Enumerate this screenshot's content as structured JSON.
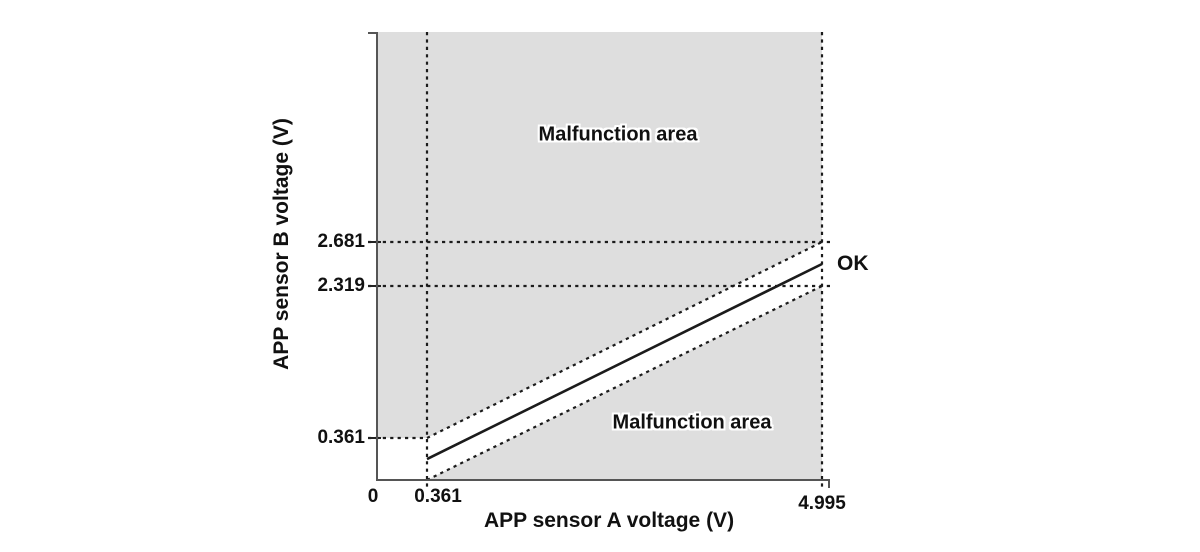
{
  "figure": {
    "x_axis_title": "APP sensor A voltage (V)",
    "y_axis_title": "APP sensor B voltage (V)",
    "x_tick_labels": [
      "0",
      "0.361",
      "4.995"
    ],
    "y_tick_labels": [
      "2.681",
      "2.319",
      "0.361"
    ],
    "labels": {
      "malfunction_top": "Malfunction area",
      "malfunction_bottom": "Malfunction area",
      "ok": "OK"
    }
  },
  "chart_data": {
    "type": "line",
    "title": "",
    "xlabel": "APP sensor A voltage (V)",
    "ylabel": "APP sensor B voltage (V)",
    "xlim": [
      0,
      5.2
    ],
    "ylim": [
      0,
      4.3
    ],
    "x_ticks": [
      0,
      0.361,
      4.995
    ],
    "y_ticks": [
      2.681,
      2.319,
      0.361
    ],
    "grid": false,
    "series": [
      {
        "name": "ok-band-upper-limit",
        "style": "dashed",
        "points": [
          [
            0.361,
            0.361
          ],
          [
            4.995,
            2.681
          ]
        ]
      },
      {
        "name": "ok-band-lower-limit",
        "style": "dashed",
        "points": [
          [
            0.361,
            0.0
          ],
          [
            4.995,
            2.319
          ]
        ]
      },
      {
        "name": "ok-band-center-line",
        "style": "solid",
        "points": [
          [
            0.361,
            0.18
          ],
          [
            4.995,
            2.5
          ]
        ]
      }
    ],
    "reference_lines": {
      "vertical": [
        {
          "value": 0.361,
          "extent": "full"
        },
        {
          "value": 4.995,
          "extent": "full"
        }
      ],
      "horizontal": [
        {
          "value": 2.681,
          "x_end": "right"
        },
        {
          "value": 2.319,
          "x_end": "right"
        },
        {
          "value": 0.361,
          "x_end": 0.361
        }
      ]
    },
    "regions": [
      {
        "label": "Malfunction area",
        "position": "above OK band"
      },
      {
        "label": "Malfunction area",
        "position": "below OK band"
      },
      {
        "label": "OK",
        "position": "diagonal band between tolerance limits"
      }
    ],
    "colors": {
      "malfunction_fill": "#dedede",
      "ok_fill": "#ffffff",
      "line": "#1b1b1b",
      "axis": "#555555",
      "text": "#111111"
    }
  }
}
